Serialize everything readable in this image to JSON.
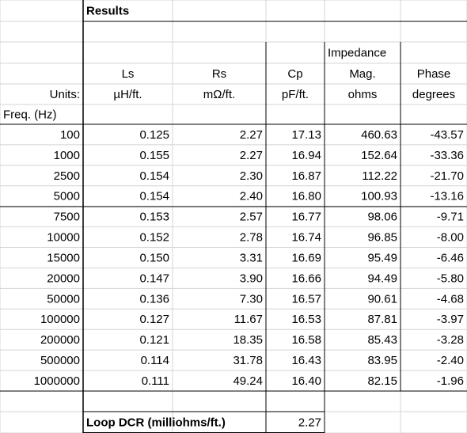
{
  "title": "Results",
  "impedance_label": "Impedance",
  "headers": [
    "Ls",
    "Rs",
    "Cp",
    "Mag.",
    "Phase"
  ],
  "units_label": "Units:",
  "units": [
    "µH/ft.",
    "mΩ/ft.",
    "pF/ft.",
    "ohms",
    "degrees"
  ],
  "freq_label": "Freq. (Hz)",
  "rows": [
    [
      "100",
      "0.125",
      "2.27",
      "17.13",
      "460.63",
      "-43.57"
    ],
    [
      "1000",
      "0.155",
      "2.27",
      "16.94",
      "152.64",
      "-33.36"
    ],
    [
      "2500",
      "0.154",
      "2.30",
      "16.87",
      "112.22",
      "-21.70"
    ],
    [
      "5000",
      "0.154",
      "2.40",
      "16.80",
      "100.93",
      "-13.16"
    ],
    [
      "7500",
      "0.153",
      "2.57",
      "16.77",
      "98.06",
      "-9.71"
    ],
    [
      "10000",
      "0.152",
      "2.78",
      "16.74",
      "96.85",
      "-8.00"
    ],
    [
      "15000",
      "0.150",
      "3.31",
      "16.69",
      "95.49",
      "-6.46"
    ],
    [
      "20000",
      "0.147",
      "3.90",
      "16.66",
      "94.49",
      "-5.80"
    ],
    [
      "50000",
      "0.136",
      "7.30",
      "16.57",
      "90.61",
      "-4.68"
    ],
    [
      "100000",
      "0.127",
      "11.67",
      "16.53",
      "87.81",
      "-3.97"
    ],
    [
      "200000",
      "0.121",
      "18.35",
      "16.58",
      "85.43",
      "-3.28"
    ],
    [
      "500000",
      "0.114",
      "31.78",
      "16.43",
      "83.95",
      "-2.40"
    ],
    [
      "1000000",
      "0.111",
      "49.24",
      "16.40",
      "82.15",
      "-1.96"
    ]
  ],
  "loop_label": "Loop DCR (milliohms/ft.)",
  "loop_value": "2.27"
}
